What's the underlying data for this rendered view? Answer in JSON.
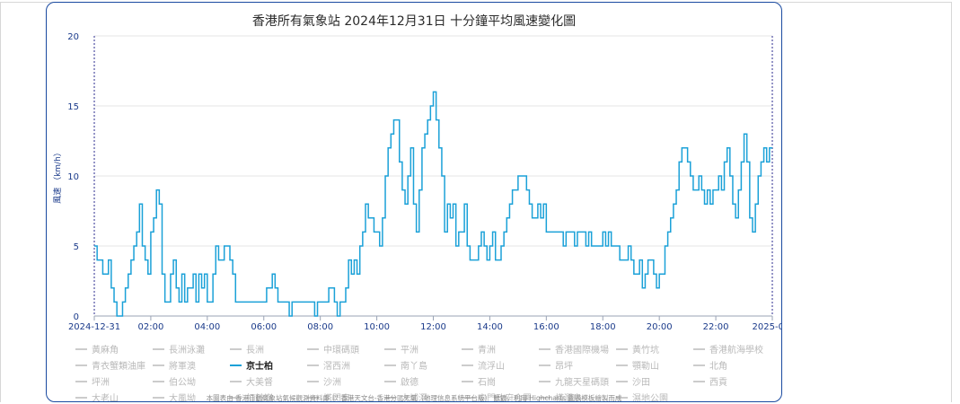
{
  "chart_data": {
    "type": "line",
    "step": true,
    "title": "香港所有氣象站 2024年12月31日 十分鐘平均風速變化圖",
    "ylabel": "風速 （km/h）",
    "ylim": [
      0,
      20
    ],
    "yticks": [
      0,
      5,
      10,
      15,
      20
    ],
    "grid": true,
    "x_start": "2024-12-31 00:00",
    "x_end": "2025-01-01 00:00",
    "x_interval_minutes": 10,
    "xticks": [
      "2024-12-31",
      "02:00",
      "04:00",
      "06:00",
      "08:00",
      "10:00",
      "12:00",
      "14:00",
      "16:00",
      "18:00",
      "20:00",
      "22:00",
      "2025-0..."
    ],
    "series": [
      {
        "name": "京士柏",
        "color": "#1ba1d8",
        "values": [
          5,
          4,
          4,
          3,
          3,
          4,
          2,
          1,
          0,
          0,
          1,
          2,
          3,
          4,
          5,
          6,
          8,
          5,
          4,
          3,
          6,
          7,
          9,
          8,
          3,
          1,
          1,
          3,
          4,
          2,
          1,
          3,
          1,
          2,
          2,
          3,
          1,
          3,
          2,
          3,
          1,
          1,
          3,
          5,
          4,
          4,
          5,
          5,
          4,
          3,
          1,
          1,
          1,
          1,
          1,
          1,
          1,
          1,
          1,
          1,
          1,
          2,
          2,
          3,
          2,
          1,
          1,
          1,
          1,
          0,
          1,
          1,
          1,
          1,
          1,
          1,
          1,
          1,
          0,
          1,
          1,
          1,
          1,
          2,
          2,
          1,
          0,
          1,
          1,
          2,
          4,
          3,
          4,
          3,
          5,
          6,
          8,
          7,
          7,
          6,
          6,
          5,
          7,
          10,
          12,
          13,
          14,
          14,
          11,
          9,
          8,
          10,
          12,
          8,
          6,
          9,
          12,
          13,
          14,
          15,
          16,
          14,
          12,
          10,
          6,
          8,
          7,
          8,
          5,
          6,
          6,
          8,
          5,
          4,
          4,
          4,
          5,
          6,
          5,
          4,
          5,
          6,
          4,
          4,
          5,
          6,
          7,
          8,
          9,
          9,
          10,
          10,
          10,
          9,
          8,
          7,
          7,
          8,
          7,
          8,
          6,
          6,
          6,
          6,
          6,
          6,
          5,
          6,
          6,
          6,
          5,
          6,
          6,
          6,
          5,
          6,
          5,
          5,
          5,
          5,
          6,
          5,
          6,
          5,
          5,
          5,
          4,
          4,
          4,
          5,
          4,
          3,
          3,
          4,
          2,
          3,
          4,
          4,
          3,
          2,
          3,
          3,
          5,
          6,
          7,
          8,
          9,
          11,
          12,
          12,
          11,
          10,
          9,
          9,
          10,
          9,
          8,
          9,
          8,
          9,
          9,
          10,
          9,
          11,
          12,
          10,
          8,
          7,
          9,
          11,
          13,
          11,
          7,
          6,
          8,
          10,
          11,
          12,
          11,
          12
        ]
      }
    ]
  },
  "legend": {
    "items": [
      {
        "label": "黃麻角",
        "active": false
      },
      {
        "label": "長洲泳灘",
        "active": false
      },
      {
        "label": "長洲",
        "active": false
      },
      {
        "label": "中環碼頭",
        "active": false
      },
      {
        "label": "平洲",
        "active": false
      },
      {
        "label": "青洲",
        "active": false
      },
      {
        "label": "香港國際機場",
        "active": false
      },
      {
        "label": "黃竹坑",
        "active": false
      },
      {
        "label": "香港航海學校",
        "active": false
      },
      {
        "label": "青衣蟹類油庫",
        "active": false
      },
      {
        "label": "將軍澳",
        "active": false
      },
      {
        "label": "京士柏",
        "active": true
      },
      {
        "label": "滘西洲",
        "active": false
      },
      {
        "label": "南丫島",
        "active": false
      },
      {
        "label": "流浮山",
        "active": false
      },
      {
        "label": "昂坪",
        "active": false
      },
      {
        "label": "顎勒山",
        "active": false
      },
      {
        "label": "北角",
        "active": false
      },
      {
        "label": "坪洲",
        "active": false
      },
      {
        "label": "伯公坳",
        "active": false
      },
      {
        "label": "大美督",
        "active": false
      },
      {
        "label": "沙洲",
        "active": false
      },
      {
        "label": "啟德",
        "active": false
      },
      {
        "label": "石崗",
        "active": false
      },
      {
        "label": "九龍天星碼頭",
        "active": false
      },
      {
        "label": "沙田",
        "active": false
      },
      {
        "label": "西貢",
        "active": false
      },
      {
        "label": "大老山",
        "active": false
      },
      {
        "label": "大風坳",
        "active": false
      },
      {
        "label": "打鼓嶺",
        "active": false
      },
      {
        "label": "塔門東",
        "active": false
      },
      {
        "label": "大埔滘",
        "active": false
      },
      {
        "label": "屯門政府合署",
        "active": false
      },
      {
        "label": "橫瀾島",
        "active": false
      },
      {
        "label": "濕地公園",
        "active": false
      }
    ]
  },
  "credit": "本圖表由 香港自動氣象站氣候觀測資料庫 以 香港天文台-香港分區天氣（地理信息系統平台版） 數據，利用 Highcharts 圖表模板繪製而成"
}
